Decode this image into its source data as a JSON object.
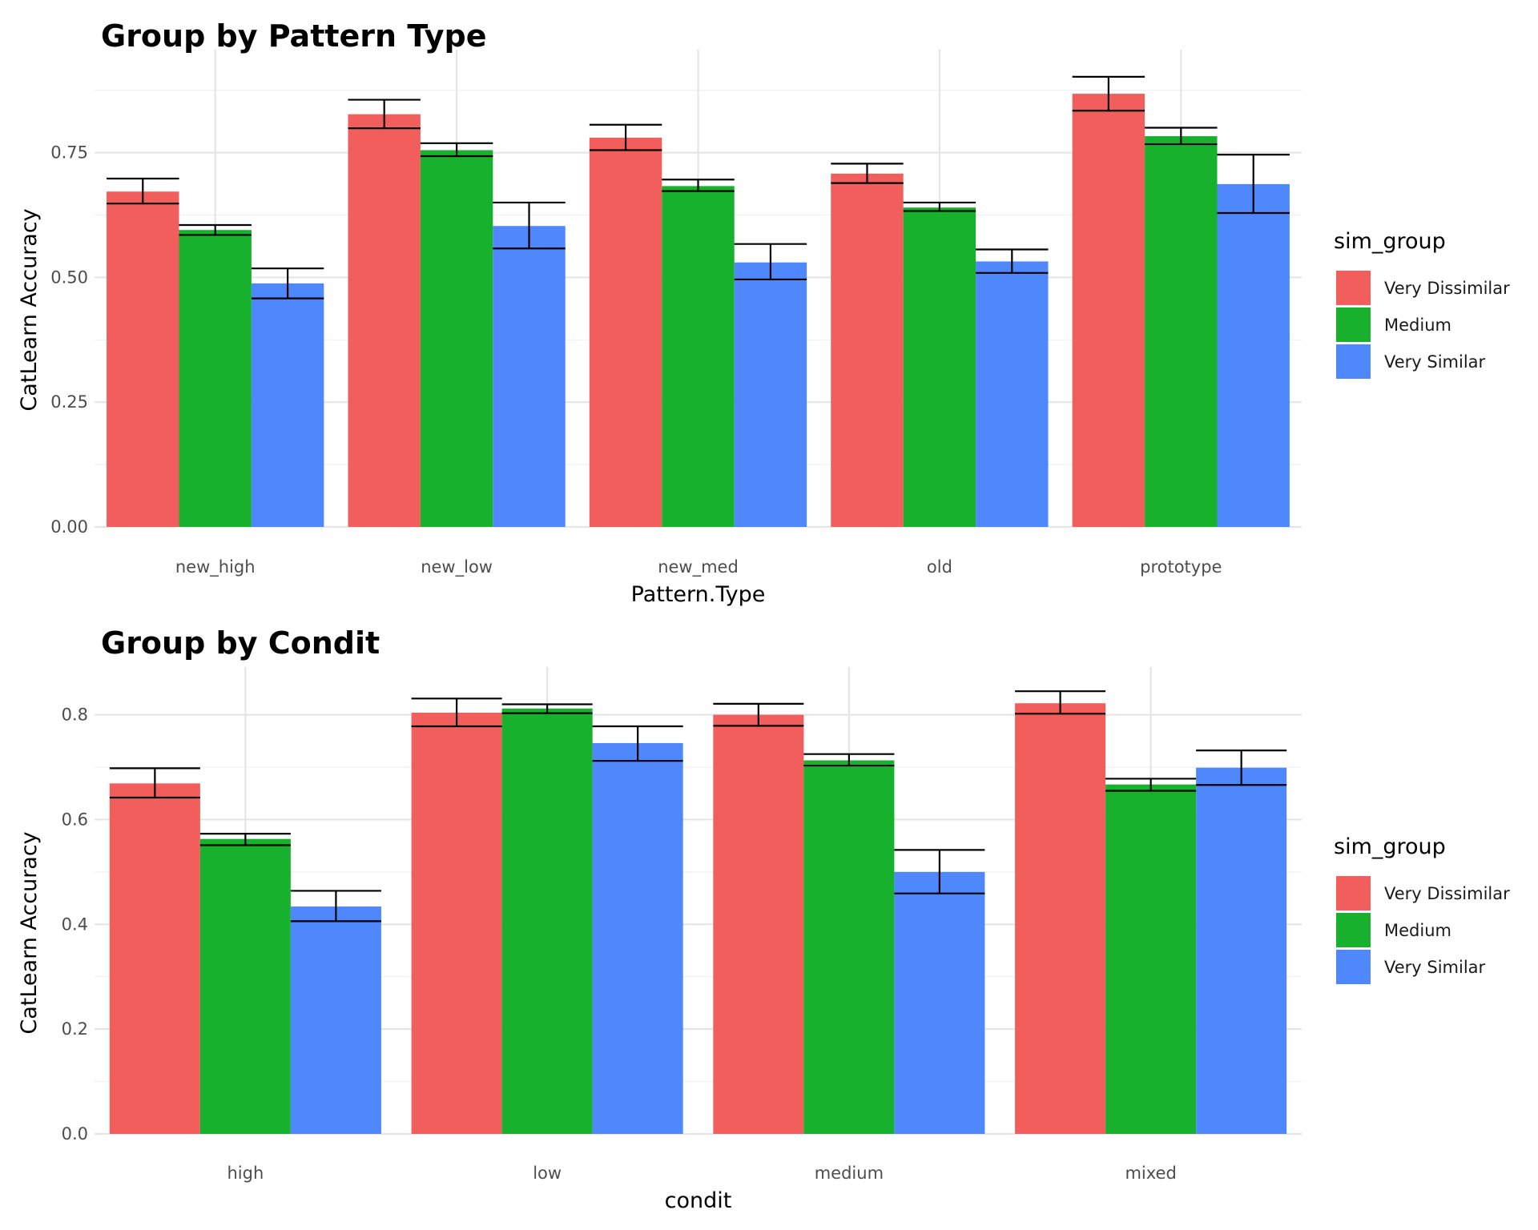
{
  "palette": {
    "Very Dissimilar": "#F25E5C",
    "Medium": "#18B12E",
    "Very Similar": "#4F87FC"
  },
  "chart_data": [
    {
      "type": "bar",
      "title": "Group by Pattern Type",
      "xlabel": "Pattern.Type",
      "ylabel": "CatLearn Accuracy",
      "categories": [
        "new_high",
        "new_low",
        "new_med",
        "old",
        "prototype"
      ],
      "yticks": [
        0.0,
        0.25,
        0.5,
        0.75
      ],
      "ytick_labels": [
        "0.00",
        "0.25",
        "0.50",
        "0.75"
      ],
      "ylim": [
        0,
        0.95
      ],
      "legend_title": "sim_group",
      "legend_position": "right",
      "grid": true,
      "series": [
        {
          "name": "Very Dissimilar",
          "values": [
            0.672,
            0.827,
            0.78,
            0.708,
            0.868
          ],
          "err_low": [
            0.648,
            0.799,
            0.755,
            0.689,
            0.834
          ],
          "err_high": [
            0.698,
            0.856,
            0.806,
            0.728,
            0.902
          ]
        },
        {
          "name": "Medium",
          "values": [
            0.595,
            0.755,
            0.683,
            0.64,
            0.783
          ],
          "err_low": [
            0.585,
            0.743,
            0.673,
            0.633,
            0.767
          ],
          "err_high": [
            0.605,
            0.769,
            0.696,
            0.65,
            0.8
          ]
        },
        {
          "name": "Very Similar",
          "values": [
            0.488,
            0.603,
            0.53,
            0.532,
            0.687
          ],
          "err_low": [
            0.458,
            0.558,
            0.496,
            0.509,
            0.629
          ],
          "err_high": [
            0.518,
            0.65,
            0.567,
            0.556,
            0.746
          ]
        }
      ]
    },
    {
      "type": "bar",
      "title": "Group by Condit",
      "xlabel": "condit",
      "ylabel": "CatLearn Accuracy",
      "categories": [
        "high",
        "low",
        "medium",
        "mixed"
      ],
      "yticks": [
        0.0,
        0.2,
        0.4,
        0.6,
        0.8
      ],
      "ytick_labels": [
        "0.0",
        "0.2",
        "0.4",
        "0.6",
        "0.8"
      ],
      "ylim": [
        0,
        0.885
      ],
      "legend_title": "sim_group",
      "legend_position": "right",
      "grid": true,
      "series": [
        {
          "name": "Very Dissimilar",
          "values": [
            0.669,
            0.804,
            0.8,
            0.822
          ],
          "err_low": [
            0.642,
            0.778,
            0.779,
            0.802
          ],
          "err_high": [
            0.698,
            0.831,
            0.821,
            0.845
          ]
        },
        {
          "name": "Medium",
          "values": [
            0.563,
            0.812,
            0.713,
            0.667
          ],
          "err_low": [
            0.551,
            0.803,
            0.703,
            0.655
          ],
          "err_high": [
            0.573,
            0.82,
            0.725,
            0.678
          ]
        },
        {
          "name": "Very Similar",
          "values": [
            0.434,
            0.746,
            0.5,
            0.699
          ],
          "err_low": [
            0.406,
            0.712,
            0.459,
            0.666
          ],
          "err_high": [
            0.464,
            0.778,
            0.542,
            0.732
          ]
        }
      ]
    }
  ]
}
